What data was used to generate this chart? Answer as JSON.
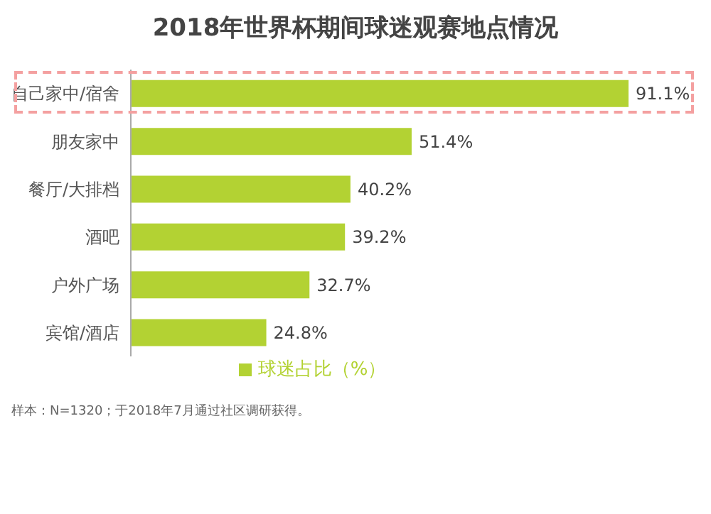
{
  "chart_data": {
    "type": "bar",
    "orientation": "horizontal",
    "title": "2018年世界杯期间球迷观赛地点情况",
    "categories": [
      "自己家中/宿舍",
      "朋友家中",
      "餐厅/大排档",
      "酒吧",
      "户外广场",
      "宾馆/酒店"
    ],
    "series": [
      {
        "name": "球迷占比（%）",
        "color": "#b3d233",
        "values": [
          91.1,
          51.4,
          40.2,
          39.2,
          32.7,
          24.8
        ],
        "value_labels": [
          "91.1%",
          "51.4%",
          "40.2%",
          "39.2%",
          "32.7%",
          "24.8%"
        ]
      }
    ],
    "legend": "bottom",
    "grid": false,
    "annotations": [
      "样本：N=1320；于2018年7月通过社区调研获得。"
    ]
  }
}
